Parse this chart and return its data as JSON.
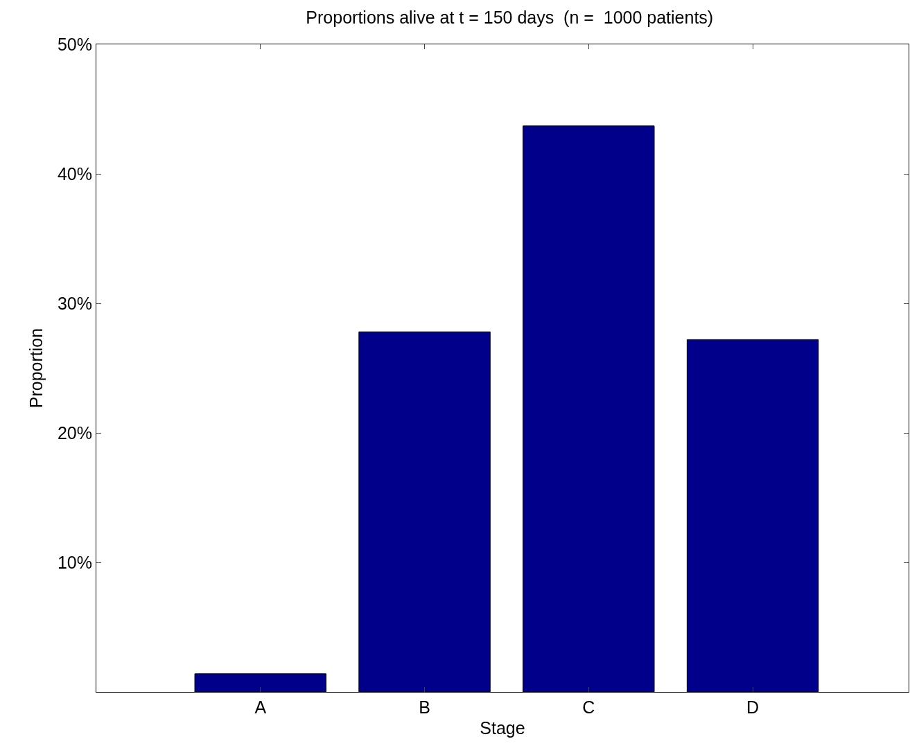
{
  "chart_data": {
    "type": "bar",
    "title": "Proportions alive at t = 150 days  (n =  1000 patients)",
    "xlabel": "Stage",
    "ylabel": "Proportion",
    "categories": [
      "A",
      "B",
      "C",
      "D"
    ],
    "values": [
      1.4,
      27.8,
      43.7,
      27.2
    ],
    "color": "#00008b",
    "ylim": [
      0,
      50
    ],
    "yticks": [
      {
        "value": 10,
        "label": "10%"
      },
      {
        "value": 20,
        "label": "20%"
      },
      {
        "value": 30,
        "label": "30%"
      },
      {
        "value": 40,
        "label": "40%"
      },
      {
        "value": 50,
        "label": "50%"
      }
    ],
    "grid": false,
    "legend": false
  }
}
